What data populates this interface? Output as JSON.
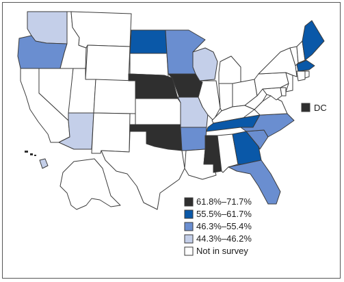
{
  "colors": {
    "cat1": "#2f2f2f",
    "cat2": "#0a58a8",
    "cat3": "#6a8ed0",
    "cat4": "#c4cfe9",
    "none": "#ffffff",
    "border": "#3a3a3a"
  },
  "dc": {
    "label": "DC",
    "category": "cat1"
  },
  "legend": {
    "items": [
      {
        "label": "61.8%–71.7%",
        "category": "cat1"
      },
      {
        "label": "55.5%–61.7%",
        "category": "cat2"
      },
      {
        "label": "46.3%–55.4%",
        "category": "cat3"
      },
      {
        "label": "44.3%–46.2%",
        "category": "cat4"
      },
      {
        "label": "Not in survey",
        "category": "none"
      }
    ]
  },
  "states": [
    {
      "id": "WA",
      "category": "cat4"
    },
    {
      "id": "OR",
      "category": "cat3"
    },
    {
      "id": "CA",
      "category": "none"
    },
    {
      "id": "NV",
      "category": "none"
    },
    {
      "id": "ID",
      "category": "none"
    },
    {
      "id": "MT",
      "category": "none"
    },
    {
      "id": "WY",
      "category": "none"
    },
    {
      "id": "UT",
      "category": "none"
    },
    {
      "id": "AZ",
      "category": "cat4"
    },
    {
      "id": "CO",
      "category": "none"
    },
    {
      "id": "NM",
      "category": "none"
    },
    {
      "id": "ND",
      "category": "cat2"
    },
    {
      "id": "SD",
      "category": "none"
    },
    {
      "id": "NE",
      "category": "cat1"
    },
    {
      "id": "KS",
      "category": "none"
    },
    {
      "id": "OK",
      "category": "cat1"
    },
    {
      "id": "TX",
      "category": "none"
    },
    {
      "id": "MN",
      "category": "cat3"
    },
    {
      "id": "IA",
      "category": "cat1"
    },
    {
      "id": "MO",
      "category": "cat4"
    },
    {
      "id": "AR",
      "category": "cat3"
    },
    {
      "id": "LA",
      "category": "none"
    },
    {
      "id": "WI",
      "category": "cat4"
    },
    {
      "id": "IL",
      "category": "none"
    },
    {
      "id": "MI",
      "category": "none"
    },
    {
      "id": "IN",
      "category": "none"
    },
    {
      "id": "OH",
      "category": "none"
    },
    {
      "id": "KY",
      "category": "none"
    },
    {
      "id": "TN",
      "category": "cat2"
    },
    {
      "id": "MS",
      "category": "cat1"
    },
    {
      "id": "AL",
      "category": "none"
    },
    {
      "id": "GA",
      "category": "cat2"
    },
    {
      "id": "FL",
      "category": "cat3"
    },
    {
      "id": "SC",
      "category": "cat3"
    },
    {
      "id": "NC",
      "category": "cat3"
    },
    {
      "id": "VA",
      "category": "none"
    },
    {
      "id": "WV",
      "category": "none"
    },
    {
      "id": "PA",
      "category": "none"
    },
    {
      "id": "NY",
      "category": "none"
    },
    {
      "id": "VT",
      "category": "none"
    },
    {
      "id": "NH",
      "category": "none"
    },
    {
      "id": "ME",
      "category": "cat2"
    },
    {
      "id": "MA",
      "category": "cat2"
    },
    {
      "id": "CT",
      "category": "none"
    },
    {
      "id": "RI",
      "category": "none"
    },
    {
      "id": "NJ",
      "category": "none"
    },
    {
      "id": "DE",
      "category": "none"
    },
    {
      "id": "MD",
      "category": "none"
    },
    {
      "id": "AK",
      "category": "none"
    },
    {
      "id": "HI",
      "category": "cat4"
    }
  ]
}
